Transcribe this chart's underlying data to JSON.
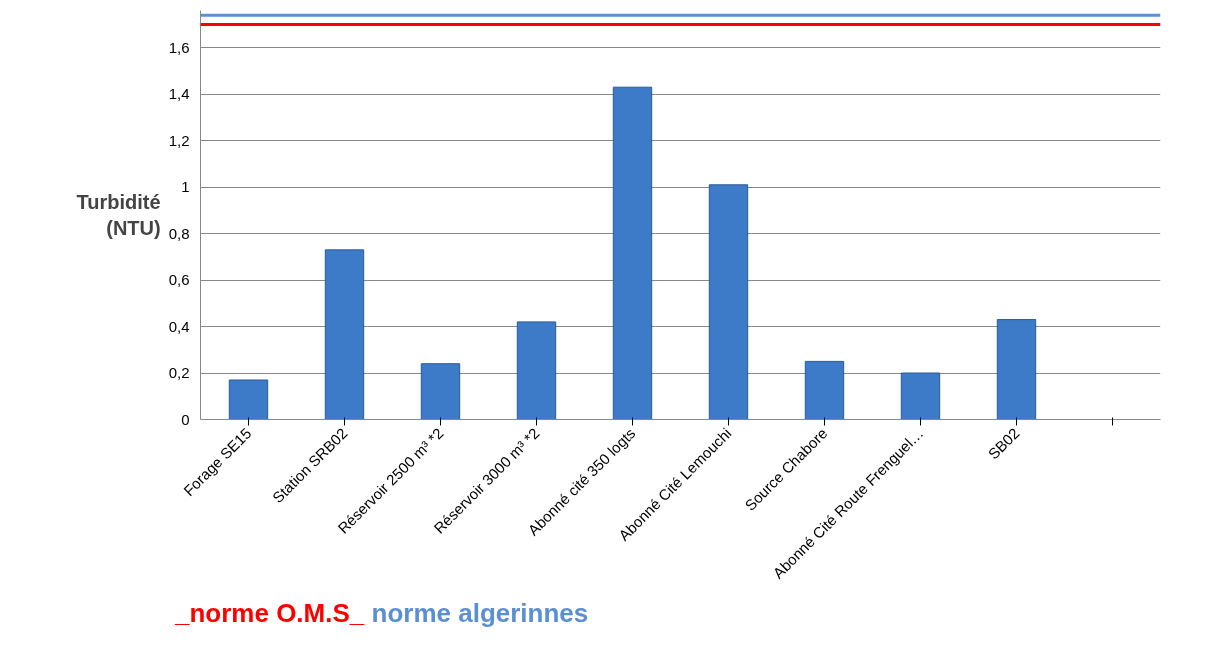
{
  "chart_data": {
    "type": "bar",
    "ylabel": "Turbidité\n(NTU)",
    "categories": [
      "Forage SE15",
      "Station SRB02",
      "Réservoir 2500 m³ *2",
      "Réservoir 3000 m³ *2",
      "Abonné cité 350 logts",
      "Abonné Cité Lemouchi",
      "Source Chabore",
      "Abonné Cité Route Frenguel…",
      "SB02",
      null
    ],
    "values": [
      0.17,
      0.73,
      0.24,
      0.42,
      1.43,
      1.01,
      0.25,
      0.2,
      0.43,
      null
    ],
    "color": "#3d7bc8",
    "ylim": [
      0,
      1.76
    ],
    "yticks": [
      0,
      {
        "value": 0.2,
        "label": "0,2"
      },
      {
        "value": 0.4,
        "label": "0,4"
      },
      {
        "value": 0.6,
        "label": "0,6"
      },
      {
        "value": 0.8,
        "label": "0,8"
      },
      1,
      {
        "value": 1.2,
        "label": "1,2"
      },
      {
        "value": 1.4,
        "label": "1,4"
      },
      {
        "value": 1.6,
        "label": "1,6"
      }
    ],
    "grid": "y",
    "ref_lines": [
      {
        "axis": "y",
        "value": 1.7,
        "label": "_norme O.M.S_",
        "color": "#ff0000"
      },
      {
        "axis": "y",
        "value": 1.74,
        "label": "norme algerinnes",
        "color": "#5b8fd4"
      }
    ]
  }
}
